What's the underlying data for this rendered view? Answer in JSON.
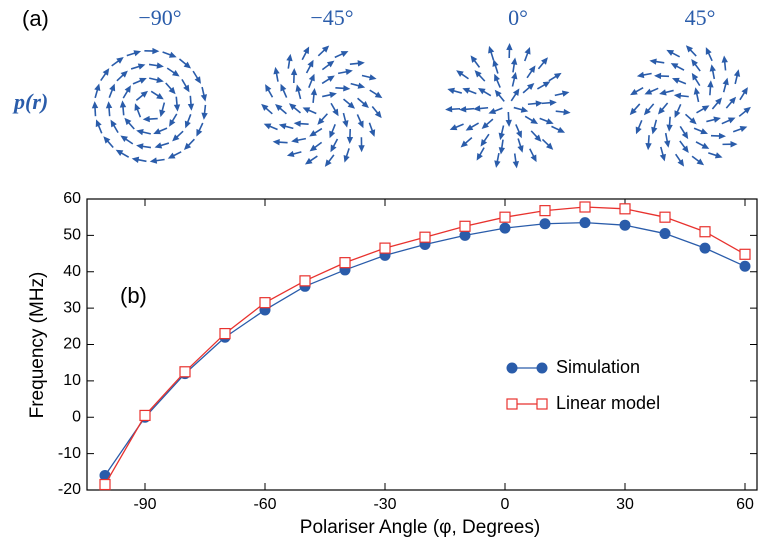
{
  "panel_a": {
    "label": "(a)",
    "row_label": "p(r)",
    "angles": [
      {
        "value": -90,
        "label": "−90°"
      },
      {
        "value": -45,
        "label": "−45°"
      },
      {
        "value": 0,
        "label": "0°"
      },
      {
        "value": 45,
        "label": "45°"
      }
    ]
  },
  "chart_data": {
    "type": "line",
    "panel_label": "(b)",
    "x_label": "Polariser Angle (φ, Degrees)",
    "y_label": "Frequency (MHz)",
    "x": [
      -100,
      -90,
      -80,
      -70,
      -60,
      -50,
      -40,
      -30,
      -20,
      -10,
      0,
      10,
      20,
      30,
      40,
      50,
      60
    ],
    "series": [
      {
        "name": "Simulation",
        "color": "#2a5caa",
        "marker": "filled-circle",
        "values": [
          -16,
          0,
          12,
          22,
          29.5,
          36,
          40.5,
          44.5,
          47.5,
          50,
          52,
          53.2,
          53.5,
          52.8,
          50.5,
          46.5,
          41.5
        ]
      },
      {
        "name": "Linear model",
        "color": "#e8322e",
        "marker": "open-square",
        "values": [
          -18.5,
          0.5,
          12.5,
          23,
          31.5,
          37.5,
          42.5,
          46.5,
          49.5,
          52.5,
          55,
          56.8,
          57.8,
          57.3,
          55,
          51,
          44.8
        ]
      }
    ],
    "xlim": [
      -104.5,
      63
    ],
    "ylim": [
      -20,
      60
    ],
    "xticks": [
      -90,
      -60,
      -30,
      0,
      30,
      60
    ],
    "yticks": [
      -20,
      -10,
      0,
      10,
      20,
      30,
      40,
      50,
      60
    ],
    "legend": "lower right"
  }
}
